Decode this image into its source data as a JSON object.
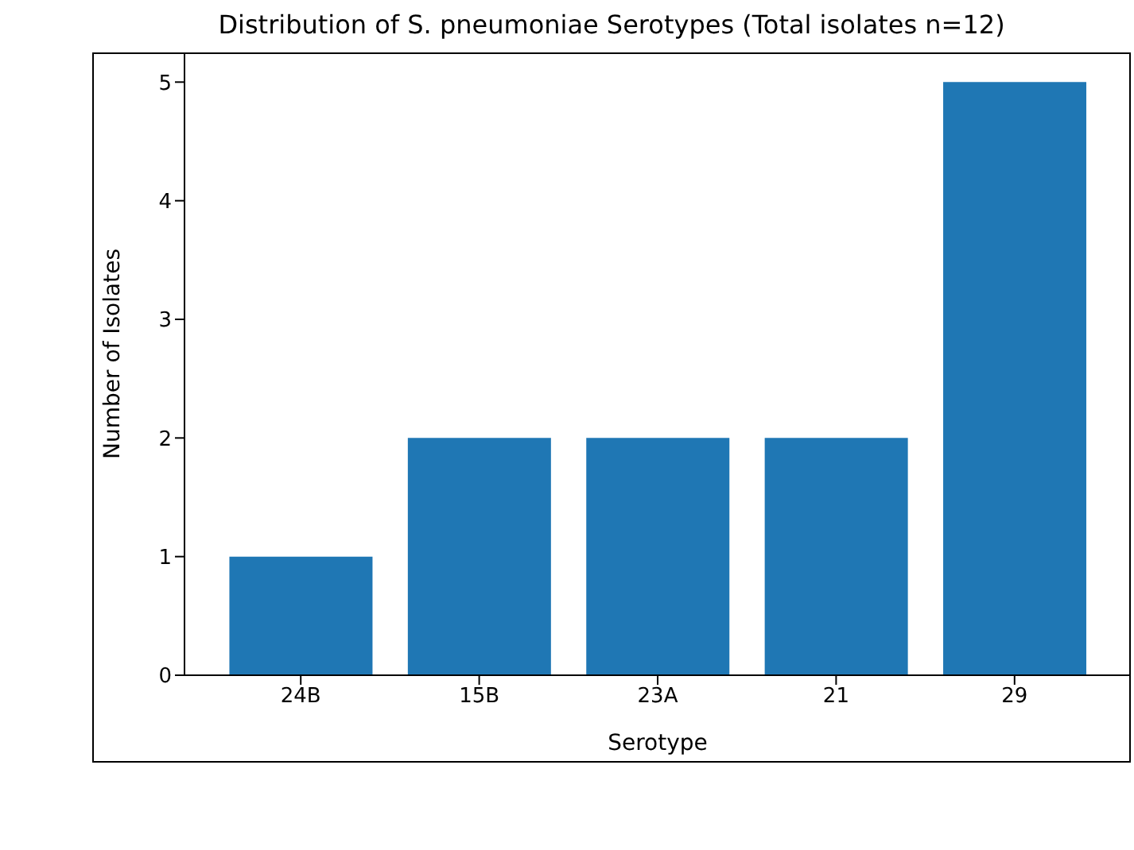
{
  "chart_data": {
    "type": "bar",
    "title": "Distribution of S. pneumoniae Serotypes (Total isolates n=12)",
    "xlabel": "Serotype",
    "ylabel": "Number of Isolates",
    "categories": [
      "24B",
      "15B",
      "23A",
      "21",
      "29"
    ],
    "values": [
      1,
      2,
      2,
      2,
      5
    ],
    "color": "#1f77b4",
    "ylim": [
      0,
      5.25
    ],
    "yticks": [
      0,
      1,
      2,
      3,
      4,
      5
    ],
    "grid": false,
    "legend": false
  }
}
